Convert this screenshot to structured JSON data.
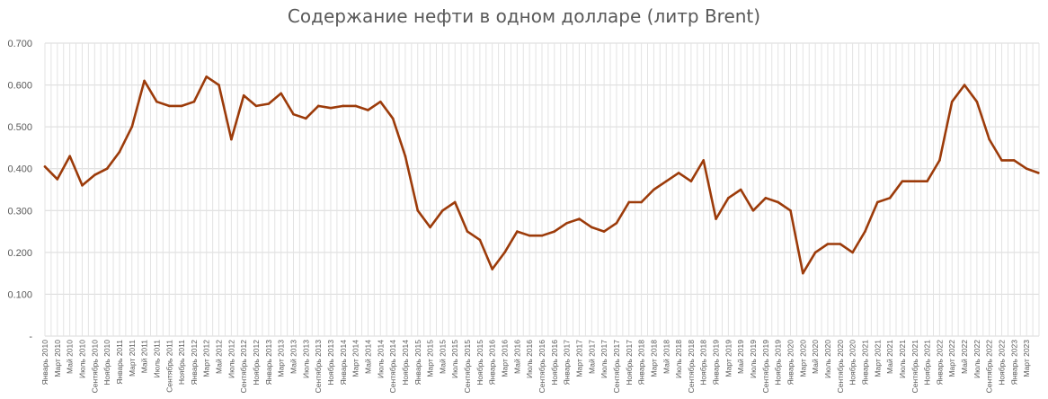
{
  "chart_data": {
    "type": "line",
    "title": "Содержание нефти в одном долларе (литр Brent)",
    "xlabel": "",
    "ylabel": "",
    "ylim": [
      0,
      0.7
    ],
    "y_ticks": [
      "-",
      "0.100",
      "0.200",
      "0.300",
      "0.400",
      "0.500",
      "0.600",
      "0.700"
    ],
    "grid": true,
    "legend": "none",
    "line_color": "#9C3B0A",
    "x_tick_labels": [
      "Январь 2010",
      "Март 2010",
      "Май 2010",
      "Июль 2010",
      "Сентябрь 2010",
      "Ноябрь 2010",
      "Январь 2011",
      "Март 2011",
      "Май 2011",
      "Июль 2011",
      "Сентябрь 2011",
      "Ноябрь 2011",
      "Январь 2012",
      "Март 2012",
      "Май 2012",
      "Июль 2012",
      "Сентябрь 2012",
      "Ноябрь 2012",
      "Январь 2013",
      "Март 2013",
      "Май 2013",
      "Июль 2013",
      "Сентябрь 2013",
      "Ноябрь 2013",
      "Январь 2014",
      "Март 2014",
      "Май 2014",
      "Июль 2014",
      "Сентябрь 2014",
      "Ноябрь 2014",
      "Январь 2015",
      "Март 2015",
      "Май 2015",
      "Июль 2015",
      "Сентябрь 2015",
      "Ноябрь 2015",
      "Январь 2016",
      "Март 2016",
      "Май 2016",
      "Июль 2016",
      "Сентябрь 2016",
      "Ноябрь 2016",
      "Январь 2017",
      "Март 2017",
      "Май 2017",
      "Июль 2017",
      "Сентябрь 2017",
      "Ноябрь 2017",
      "Январь 2018",
      "Март 2018",
      "Май 2018",
      "Июль 2018",
      "Сентябрь 2018",
      "Ноябрь 2018",
      "Январь 2019",
      "Март 2019",
      "Май 2019",
      "Июль 2019",
      "Сентябрь 2019",
      "Ноябрь 2019",
      "Январь 2020",
      "Март 2020",
      "Май 2020",
      "Июль 2020",
      "Сентябрь 2020",
      "Ноябрь 2020",
      "Январь 2021",
      "Март 2021",
      "Май 2021",
      "Июль 2021",
      "Сентябрь 2021",
      "Ноябрь 2021",
      "Январь 2022",
      "Март 2022",
      "Май 2022",
      "Июль 2022",
      "Сентябрь 2022",
      "Ноябрь 2022",
      "Январь 2023",
      "Март 2023"
    ],
    "x": [
      "2010-01",
      "2010-03",
      "2010-05",
      "2010-07",
      "2010-09",
      "2010-11",
      "2011-01",
      "2011-03",
      "2011-05",
      "2011-07",
      "2011-09",
      "2011-11",
      "2012-01",
      "2012-03",
      "2012-05",
      "2012-07",
      "2012-09",
      "2012-11",
      "2013-01",
      "2013-03",
      "2013-05",
      "2013-07",
      "2013-09",
      "2013-11",
      "2014-01",
      "2014-03",
      "2014-05",
      "2014-07",
      "2014-09",
      "2014-11",
      "2015-01",
      "2015-03",
      "2015-05",
      "2015-07",
      "2015-09",
      "2015-11",
      "2016-01",
      "2016-03",
      "2016-05",
      "2016-07",
      "2016-09",
      "2016-11",
      "2017-01",
      "2017-03",
      "2017-05",
      "2017-07",
      "2017-09",
      "2017-11",
      "2018-01",
      "2018-03",
      "2018-05",
      "2018-07",
      "2018-09",
      "2018-11",
      "2019-01",
      "2019-03",
      "2019-05",
      "2019-07",
      "2019-09",
      "2019-11",
      "2020-01",
      "2020-03",
      "2020-05",
      "2020-07",
      "2020-09",
      "2020-11",
      "2021-01",
      "2021-03",
      "2021-05",
      "2021-07",
      "2021-09",
      "2021-11",
      "2022-01",
      "2022-03",
      "2022-05",
      "2022-07",
      "2022-09",
      "2022-11",
      "2023-01",
      "2023-03",
      "2023-04"
    ],
    "series": [
      {
        "values": [
          0.405,
          0.375,
          0.43,
          0.36,
          0.385,
          0.4,
          0.44,
          0.5,
          0.61,
          0.56,
          0.55,
          0.55,
          0.56,
          0.62,
          0.6,
          0.47,
          0.575,
          0.55,
          0.555,
          0.58,
          0.53,
          0.52,
          0.55,
          0.545,
          0.55,
          0.55,
          0.54,
          0.56,
          0.52,
          0.43,
          0.3,
          0.26,
          0.3,
          0.32,
          0.25,
          0.23,
          0.16,
          0.2,
          0.25,
          0.24,
          0.24,
          0.25,
          0.27,
          0.28,
          0.26,
          0.25,
          0.27,
          0.32,
          0.32,
          0.35,
          0.37,
          0.39,
          0.37,
          0.42,
          0.28,
          0.33,
          0.35,
          0.3,
          0.33,
          0.32,
          0.3,
          0.15,
          0.2,
          0.22,
          0.22,
          0.2,
          0.25,
          0.32,
          0.33,
          0.37,
          0.37,
          0.37,
          0.42,
          0.56,
          0.6,
          0.56,
          0.47,
          0.42,
          0.42,
          0.4,
          0.39
        ]
      }
    ]
  }
}
